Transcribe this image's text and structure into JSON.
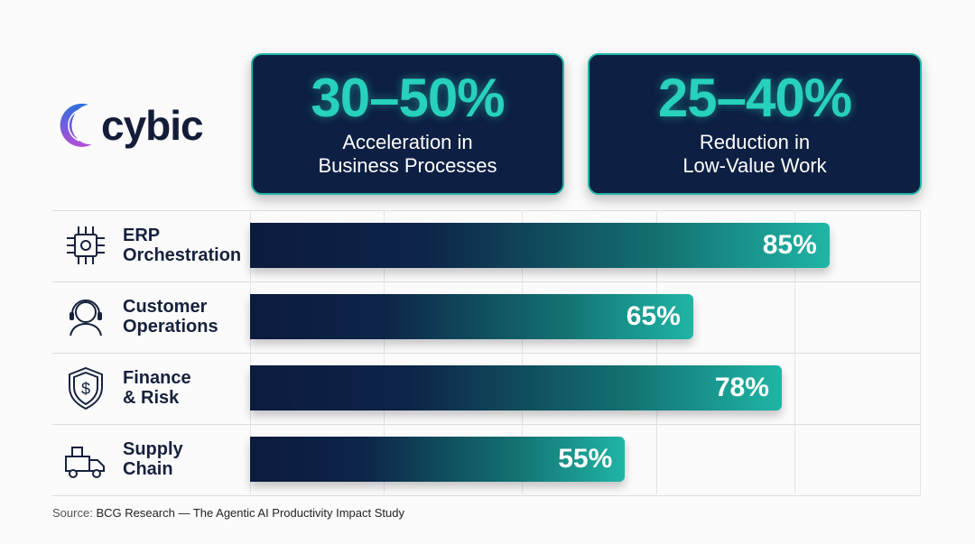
{
  "brand": {
    "name": "cybic"
  },
  "stats": [
    {
      "value": "30–50%",
      "label_line1": "Acceleration in",
      "label_line2": "Business Processes"
    },
    {
      "value": "25–40%",
      "label_line1": "Reduction in",
      "label_line2": "Low-Value Work"
    }
  ],
  "chart_data": {
    "type": "bar",
    "orientation": "horizontal",
    "categories": [
      "ERP\nOrchestration",
      "Customer\nOperations",
      "Finance\n& Risk",
      "Supply\nChain"
    ],
    "icons": [
      "circuit-gear-icon",
      "headset-agent-icon",
      "shield-dollar-icon",
      "delivery-truck-icon"
    ],
    "values": [
      85,
      65,
      78,
      55
    ],
    "value_labels": [
      "85%",
      "65%",
      "78%",
      "55%"
    ],
    "xlim": [
      0,
      100
    ],
    "grid": true,
    "colors": {
      "bar_start": "#0b1b3e",
      "bar_end": "#1fb5a5",
      "accent": "#27d1bc"
    }
  },
  "source": {
    "prefix": "Source:",
    "text": "BCG Research — The Agentic AI Productivity Impact Study"
  }
}
